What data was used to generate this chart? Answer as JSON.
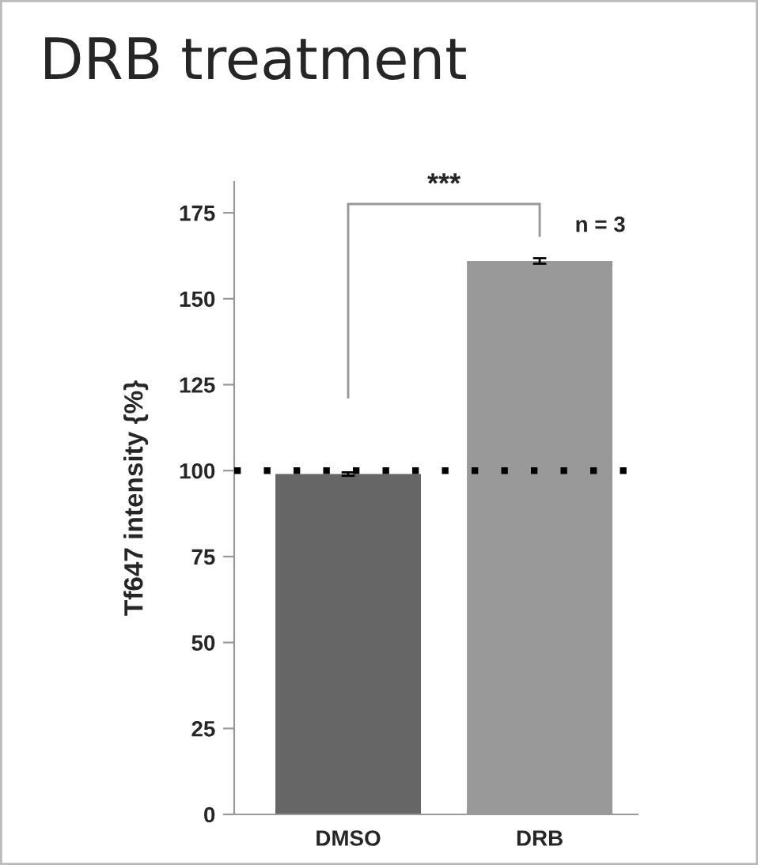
{
  "chart_data": {
    "type": "bar",
    "title": "DRB treatment",
    "ylabel": "Tf647 intensity {%}",
    "categories": [
      "DMSO",
      "DRB"
    ],
    "values": [
      99,
      161
    ],
    "errors": [
      0.5,
      0.8
    ],
    "colors": [
      "#666666",
      "#999999"
    ],
    "ylim": [
      0,
      184
    ],
    "yticks": [
      0,
      25,
      50,
      75,
      100,
      125,
      150,
      175
    ],
    "ref_lines": [
      {
        "axis": "y",
        "value": 100,
        "color": "#000000",
        "line_style": "dotted"
      }
    ],
    "annotations": [
      "***",
      "n = 3"
    ],
    "grid": false,
    "legend": false
  }
}
